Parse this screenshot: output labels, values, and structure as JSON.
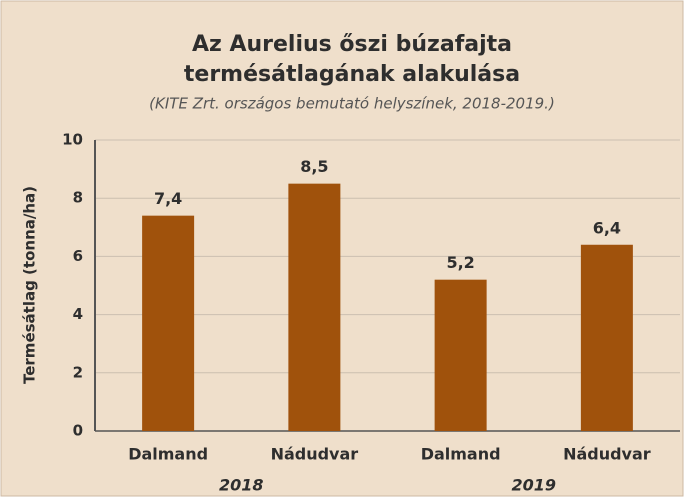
{
  "chart_data": {
    "type": "bar",
    "title": [
      "Az Aurelius őszi búzafajta",
      "termésátlagának alakulása"
    ],
    "subtitle": "(KITE Zrt. országos bemutató helyszínek, 2018-2019.)",
    "y_label": "Termésátlag (tonna/ha)",
    "groups": [
      {
        "name": "2018",
        "categories": [
          "Dalmand",
          "Nádudvar"
        ],
        "values": [
          7.4,
          8.5
        ],
        "value_labels": [
          "7,4",
          "8,5"
        ]
      },
      {
        "name": "2019",
        "categories": [
          "Dalmand",
          "Nádudvar"
        ],
        "values": [
          5.2,
          6.4
        ],
        "value_labels": [
          "5,2",
          "6,4"
        ]
      }
    ],
    "color": "#a0520c",
    "ylim": [
      0,
      10
    ],
    "yticks": [
      0,
      2,
      4,
      6,
      8,
      10
    ],
    "grid": true
  }
}
